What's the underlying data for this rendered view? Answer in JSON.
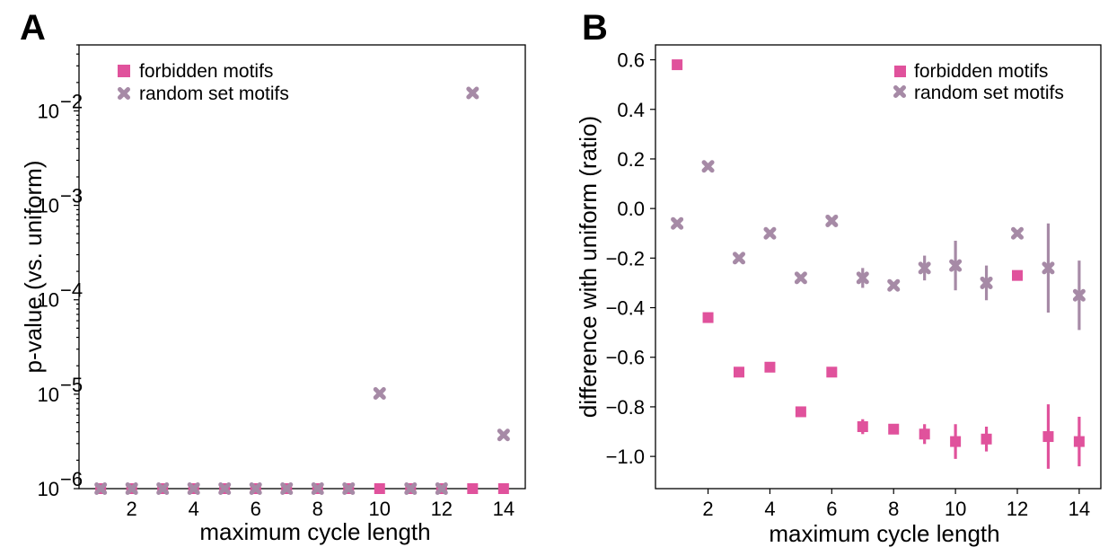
{
  "colors": {
    "forbidden": "#e0529c",
    "random": "#a68aa6"
  },
  "chart_data": [
    {
      "panel": "A",
      "type": "scatter",
      "xlabel": "maximum cycle length",
      "ylabel": "p-value (vs. uniform)",
      "yscale": "log",
      "xlim": [
        0.3,
        14.7
      ],
      "ylim": [
        1e-06,
        0.05
      ],
      "xticks": [
        2,
        4,
        6,
        8,
        10,
        12,
        14
      ],
      "yticks": [
        {
          "value": 1e-06,
          "base": "10",
          "exp": "−6"
        },
        {
          "value": 1e-05,
          "base": "10",
          "exp": "−5"
        },
        {
          "value": 0.0001,
          "base": "10",
          "exp": "−4"
        },
        {
          "value": 0.001,
          "base": "10",
          "exp": "−3"
        },
        {
          "value": 0.01,
          "base": "10",
          "exp": "−2"
        }
      ],
      "legend_position": "top-left",
      "series": [
        {
          "name": "forbidden motifs",
          "marker": "square",
          "color": "#e0529c",
          "x": [
            1,
            2,
            3,
            4,
            5,
            6,
            7,
            8,
            9,
            10,
            11,
            12,
            13,
            14
          ],
          "y": [
            1e-06,
            1e-06,
            1e-06,
            1e-06,
            1e-06,
            1e-06,
            1e-06,
            1e-06,
            1e-06,
            1e-06,
            1e-06,
            1e-06,
            1e-06,
            1e-06
          ]
        },
        {
          "name": "random set motifs",
          "marker": "x",
          "color": "#a68aa6",
          "x": [
            1,
            2,
            3,
            4,
            5,
            6,
            7,
            8,
            9,
            10,
            11,
            12,
            13,
            14
          ],
          "y": [
            1e-06,
            1e-06,
            1e-06,
            1e-06,
            1e-06,
            1e-06,
            1e-06,
            1e-06,
            1e-06,
            1.02e-05,
            1e-06,
            1e-06,
            0.0155,
            3.7e-06
          ]
        }
      ]
    },
    {
      "panel": "B",
      "type": "scatter",
      "xlabel": "maximum cycle length",
      "ylabel": "difference with uniform (ratio)",
      "xlim": [
        0.3,
        14.7
      ],
      "ylim": [
        -1.13,
        0.66
      ],
      "xticks": [
        2,
        4,
        6,
        8,
        10,
        12,
        14
      ],
      "yticks": [
        {
          "value": 0.6,
          "label": "0.6"
        },
        {
          "value": 0.4,
          "label": "0.4"
        },
        {
          "value": 0.2,
          "label": "0.2"
        },
        {
          "value": 0.0,
          "label": "0.0"
        },
        {
          "value": -0.2,
          "label": "−0.2"
        },
        {
          "value": -0.4,
          "label": "−0.4"
        },
        {
          "value": -0.6,
          "label": "−0.6"
        },
        {
          "value": -0.8,
          "label": "−0.8"
        },
        {
          "value": -1.0,
          "label": "−1.0"
        }
      ],
      "legend_position": "top-right",
      "series": [
        {
          "name": "forbidden motifs",
          "marker": "square",
          "color": "#e0529c",
          "x": [
            1,
            2,
            3,
            4,
            5,
            6,
            7,
            8,
            9,
            10,
            11,
            12,
            13,
            14
          ],
          "y": [
            0.58,
            -0.44,
            -0.66,
            -0.64,
            -0.82,
            -0.66,
            -0.88,
            -0.89,
            -0.91,
            -0.94,
            -0.93,
            -0.27,
            -0.92,
            -0.94
          ],
          "err": [
            0,
            0,
            0,
            0,
            0,
            0,
            0.03,
            0.01,
            0.04,
            0.07,
            0.05,
            0,
            0.13,
            0.1
          ]
        },
        {
          "name": "random set motifs",
          "marker": "x",
          "color": "#a68aa6",
          "x": [
            1,
            2,
            3,
            4,
            5,
            6,
            7,
            8,
            9,
            10,
            11,
            12,
            13,
            14
          ],
          "y": [
            -0.06,
            0.17,
            -0.2,
            -0.1,
            -0.28,
            -0.05,
            -0.28,
            -0.31,
            -0.24,
            -0.23,
            -0.3,
            -0.1,
            -0.24,
            -0.35
          ],
          "err": [
            0,
            0,
            0,
            0,
            0,
            0,
            0.04,
            0.01,
            0.05,
            0.1,
            0.07,
            0,
            0.18,
            0.14
          ]
        }
      ]
    }
  ]
}
